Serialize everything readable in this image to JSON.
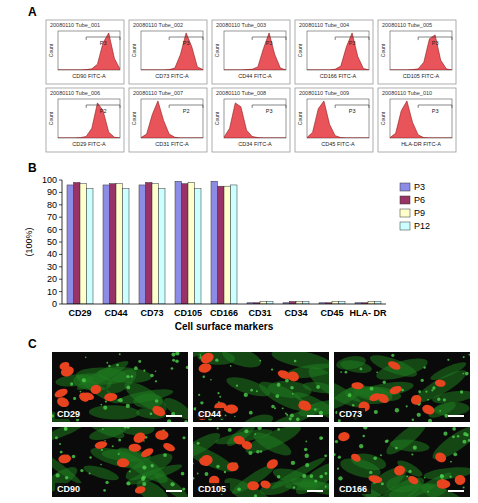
{
  "figure": {
    "panel_labels": [
      "A",
      "B",
      "C"
    ],
    "micrographs": [
      "CD29",
      "CD44",
      "CD73",
      "CD90",
      "CD105",
      "CD166"
    ]
  },
  "chart_data": [
    {
      "type": "area",
      "title": "20080110 Tube_001",
      "x_label": "CD90 FITC-A",
      "y_label": "Count",
      "x": [
        0,
        1,
        2,
        3,
        4,
        5,
        6,
        7,
        8,
        9,
        10,
        11
      ],
      "values": [
        0,
        0,
        0,
        0,
        0,
        1,
        3,
        15,
        70,
        95,
        30,
        2
      ],
      "xlim": [
        0,
        11
      ],
      "ylim": [
        0,
        100
      ],
      "tick_labels": false,
      "gate": [
        5,
        11
      ],
      "gate_label": "P3",
      "color": "#e8545a"
    },
    {
      "type": "area",
      "title": "20080110 Tube_002",
      "x_label": "CD73 FITC-A",
      "y_label": "Count",
      "x": [
        0,
        1,
        2,
        3,
        4,
        5,
        6,
        7,
        8,
        9,
        10,
        11
      ],
      "values": [
        0,
        0,
        0,
        0,
        0,
        1,
        5,
        40,
        95,
        60,
        8,
        1
      ],
      "xlim": [
        0,
        11
      ],
      "ylim": [
        0,
        100
      ],
      "tick_labels": false,
      "gate": [
        5,
        11
      ],
      "gate_label": "P3",
      "color": "#e8545a"
    },
    {
      "type": "area",
      "title": "20080110 Tube_003",
      "x_label": "CD44 FITC-A",
      "y_label": "Count",
      "x": [
        0,
        1,
        2,
        3,
        4,
        5,
        6,
        7,
        8,
        9,
        10,
        11
      ],
      "values": [
        0,
        0,
        0,
        0,
        1,
        2,
        8,
        55,
        95,
        40,
        5,
        0
      ],
      "xlim": [
        0,
        11
      ],
      "ylim": [
        0,
        100
      ],
      "tick_labels": false,
      "gate": [
        5,
        11
      ],
      "gate_label": "P3",
      "color": "#e8545a"
    },
    {
      "type": "area",
      "title": "20080110 Tube_004",
      "x_label": "CD166 FITC-A",
      "y_label": "Count",
      "x": [
        0,
        1,
        2,
        3,
        4,
        5,
        6,
        7,
        8,
        9,
        10,
        11
      ],
      "values": [
        0,
        0,
        0,
        0,
        0,
        2,
        10,
        60,
        95,
        35,
        4,
        0
      ],
      "xlim": [
        0,
        11
      ],
      "ylim": [
        0,
        100
      ],
      "tick_labels": false,
      "gate": [
        5,
        11
      ],
      "gate_label": "P3",
      "color": "#e8545a"
    },
    {
      "type": "area",
      "title": "20080110 Tube_005",
      "x_label": "CD105 FITC-A",
      "y_label": "Count",
      "x": [
        0,
        1,
        2,
        3,
        4,
        5,
        6,
        7,
        8,
        9,
        10,
        11
      ],
      "values": [
        0,
        0,
        0,
        0,
        1,
        3,
        20,
        80,
        90,
        25,
        3,
        0
      ],
      "xlim": [
        0,
        11
      ],
      "ylim": [
        0,
        100
      ],
      "tick_labels": false,
      "gate": [
        5,
        11
      ],
      "gate_label": "P3",
      "color": "#e8545a"
    },
    {
      "type": "area",
      "title": "20080110 Tube_006",
      "x_label": "CD29 FITC-A",
      "y_label": "Count",
      "x": [
        0,
        1,
        2,
        3,
        4,
        5,
        6,
        7,
        8,
        9,
        10,
        11
      ],
      "values": [
        0,
        0,
        0,
        0,
        1,
        4,
        25,
        90,
        70,
        15,
        2,
        0
      ],
      "xlim": [
        0,
        11
      ],
      "ylim": [
        0,
        100
      ],
      "tick_labels": false,
      "gate": [
        5,
        11
      ],
      "gate_label": "P2",
      "color": "#e8545a"
    },
    {
      "type": "area",
      "title": "20080110 Tube_007",
      "x_label": "CD31 FITC-A",
      "y_label": "Count",
      "x": [
        0,
        1,
        2,
        3,
        4,
        5,
        6,
        7,
        8,
        9,
        10,
        11
      ],
      "values": [
        1,
        10,
        60,
        95,
        45,
        10,
        2,
        0,
        0,
        0,
        0,
        0
      ],
      "xlim": [
        0,
        11
      ],
      "ylim": [
        0,
        100
      ],
      "tick_labels": false,
      "gate": [
        5,
        11
      ],
      "gate_label": "P2",
      "color": "#e8545a"
    },
    {
      "type": "area",
      "title": "20080110 Tube_008",
      "x_label": "CD34 FITC-A",
      "y_label": "Count",
      "x": [
        0,
        1,
        2,
        3,
        4,
        5,
        6,
        7,
        8,
        9,
        10,
        11
      ],
      "values": [
        2,
        25,
        90,
        80,
        20,
        4,
        1,
        0,
        0,
        0,
        0,
        0
      ],
      "xlim": [
        0,
        11
      ],
      "ylim": [
        0,
        100
      ],
      "tick_labels": false,
      "gate": [
        5,
        11
      ],
      "gate_label": "P3",
      "color": "#e8545a"
    },
    {
      "type": "area",
      "title": "20080110 Tube_009",
      "x_label": "CD45 FITC-A",
      "y_label": "Count",
      "x": [
        0,
        1,
        2,
        3,
        4,
        5,
        6,
        7,
        8,
        9,
        10,
        11
      ],
      "values": [
        1,
        15,
        75,
        95,
        35,
        6,
        1,
        0,
        0,
        0,
        0,
        0
      ],
      "xlim": [
        0,
        11
      ],
      "ylim": [
        0,
        100
      ],
      "tick_labels": false,
      "gate": [
        5,
        11
      ],
      "gate_label": "P3",
      "color": "#e8545a"
    },
    {
      "type": "area",
      "title": "20080110 Tube_010",
      "x_label": "HLA-DR FITC-A",
      "y_label": "Count",
      "x": [
        0,
        1,
        2,
        3,
        4,
        5,
        6,
        7,
        8,
        9,
        10,
        11
      ],
      "values": [
        1,
        12,
        70,
        95,
        40,
        8,
        1,
        0,
        0,
        0,
        0,
        0
      ],
      "xlim": [
        0,
        11
      ],
      "ylim": [
        0,
        100
      ],
      "tick_labels": false,
      "gate": [
        5,
        11
      ],
      "gate_label": "P3",
      "color": "#e8545a"
    },
    {
      "type": "bar",
      "x_label": "Cell surface markers",
      "y_label": "(100%)",
      "categories": [
        "CD29",
        "CD44",
        "CD73",
        "CD105",
        "CD166",
        "CD31",
        "CD34",
        "CD45",
        "HLA- DR"
      ],
      "series": [
        {
          "name": "P3",
          "color": "#8c8ce6",
          "values": [
            96,
            96,
            96,
            99,
            99,
            1,
            1,
            1,
            1
          ]
        },
        {
          "name": "P6",
          "color": "#993366",
          "values": [
            98,
            97,
            98,
            97,
            95,
            1,
            2,
            1,
            1
          ]
        },
        {
          "name": "P9",
          "color": "#ffffcc",
          "values": [
            97,
            97,
            97,
            98,
            95,
            2,
            2,
            2,
            2
          ]
        },
        {
          "name": "P12",
          "color": "#ccffff",
          "values": [
            93,
            93,
            93,
            93,
            96,
            2,
            2,
            2,
            2
          ]
        }
      ],
      "ylim": [
        0,
        100
      ],
      "yticks": [
        0,
        10,
        20,
        30,
        40,
        50,
        60,
        70,
        80,
        90,
        100
      ],
      "grid": false,
      "legend": "right"
    }
  ]
}
